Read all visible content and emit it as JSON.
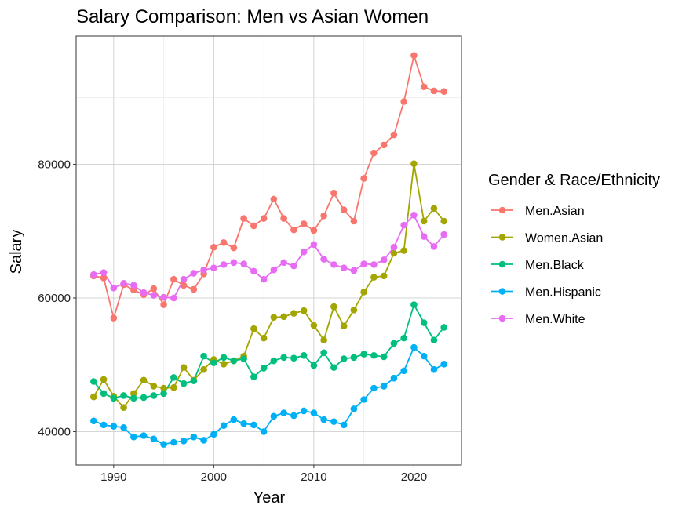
{
  "chart_data": {
    "type": "line",
    "title": "Salary Comparison: Men vs Asian Women",
    "xlabel": "Year",
    "ylabel": "Salary",
    "xlim": [
      1986.25,
      2024.75
    ],
    "ylim": [
      35000,
      99200
    ],
    "x_ticks": [
      1990,
      2000,
      2010,
      2020
    ],
    "x_tick_labels": [
      "1990",
      "2000",
      "2010",
      "2020"
    ],
    "y_ticks": [
      40000,
      60000,
      80000
    ],
    "y_tick_labels": [
      "40000",
      "60000",
      "80000"
    ],
    "grid": true,
    "legend": {
      "title": "Gender & Race/Ethnicity",
      "position": "right"
    },
    "x": [
      1988,
      1989,
      1990,
      1991,
      1992,
      1993,
      1994,
      1995,
      1996,
      1997,
      1998,
      1999,
      2000,
      2001,
      2002,
      2003,
      2004,
      2005,
      2006,
      2007,
      2008,
      2009,
      2010,
      2011,
      2012,
      2013,
      2014,
      2015,
      2016,
      2017,
      2018,
      2019,
      2020,
      2021,
      2022,
      2023
    ],
    "series": [
      {
        "name": "Men.Asian",
        "color": "#F8766D",
        "values": [
          63300,
          63000,
          57000,
          62000,
          61200,
          60500,
          61400,
          59000,
          62800,
          61900,
          61300,
          63600,
          67600,
          68300,
          67500,
          71900,
          70800,
          71900,
          74800,
          71900,
          70200,
          71100,
          70100,
          72300,
          75700,
          73200,
          71500,
          77900,
          81700,
          82900,
          84400,
          89400,
          96300,
          91600,
          91000,
          90900
        ]
      },
      {
        "name": "Women.Asian",
        "color": "#A3A500",
        "values": [
          45200,
          47800,
          45300,
          43600,
          45700,
          47700,
          46800,
          46500,
          46600,
          49600,
          47700,
          49300,
          50800,
          50100,
          50600,
          51300,
          55400,
          54000,
          57100,
          57200,
          57700,
          58100,
          55900,
          53700,
          58700,
          55800,
          58200,
          60900,
          63100,
          63300,
          66700,
          67100,
          80100,
          71500,
          73400,
          71500
        ]
      },
      {
        "name": "Men.Black",
        "color": "#00BF7D",
        "values": [
          47500,
          45700,
          45000,
          45400,
          45000,
          45100,
          45400,
          45700,
          48100,
          47200,
          47600,
          51300,
          50300,
          51100,
          50600,
          50900,
          48200,
          49500,
          50600,
          51100,
          51000,
          51400,
          49900,
          51800,
          49600,
          50900,
          51100,
          51600,
          51400,
          51200,
          53200,
          54000,
          59000,
          56300,
          53700,
          55600
        ]
      },
      {
        "name": "Men.Hispanic",
        "color": "#00B0F6",
        "values": [
          41600,
          41000,
          40800,
          40600,
          39200,
          39400,
          38900,
          38100,
          38400,
          38600,
          39200,
          38700,
          39600,
          40900,
          41800,
          41200,
          41000,
          40000,
          42300,
          42800,
          42400,
          43100,
          42800,
          41800,
          41500,
          41000,
          43400,
          44800,
          46500,
          46800,
          48000,
          49100,
          52600,
          51300,
          49300,
          50100
        ]
      },
      {
        "name": "Men.White",
        "color": "#E76BF3",
        "values": [
          63500,
          63800,
          61500,
          62200,
          61900,
          60800,
          60400,
          60100,
          60000,
          62800,
          63700,
          64200,
          64500,
          65000,
          65300,
          65100,
          64000,
          62800,
          64200,
          65300,
          64800,
          66900,
          68000,
          65800,
          65000,
          64500,
          64100,
          65100,
          65000,
          65700,
          67600,
          70900,
          72400,
          69200,
          67700,
          69500
        ]
      }
    ]
  }
}
